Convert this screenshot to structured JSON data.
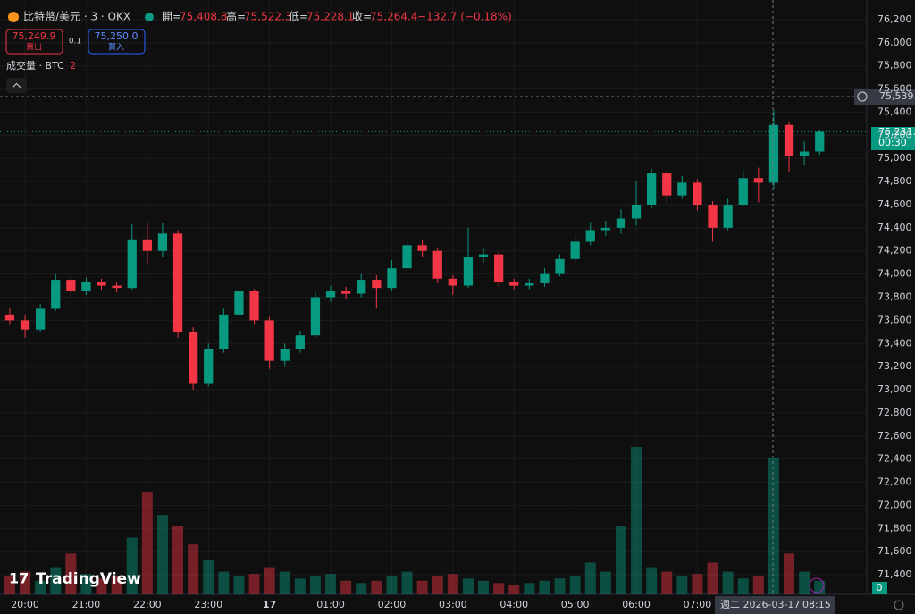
{
  "header": {
    "symbol": "比特幣/美元 · 3 · OKX",
    "open_label": "開=",
    "open": "75,408.8",
    "high_label": "高=",
    "high": "75,522.3",
    "low_label": "低=",
    "low": "75,228.1",
    "close_label": "收=",
    "close": "75,264.4",
    "change": "−132.7 (−0.18%)"
  },
  "trade": {
    "sell_price": "75,249.9",
    "sell": "賣出",
    "spread": "0.1",
    "buy_price": "75,250.0",
    "buy": "買入"
  },
  "volume_legend": {
    "label": "成交量 · BTC",
    "value": "2"
  },
  "logo": "TradingView",
  "crosshair": {
    "price": "75,539.1",
    "date": "週二 2026-03-17",
    "time": "08:15"
  },
  "last_price": {
    "price": "75,231.0",
    "countdown": "00:30"
  },
  "volume_badge": "0",
  "chart_data": {
    "type": "candlestick",
    "up_color": "#089981",
    "down_color": "#f23645",
    "categories": [
      null,
      "20:00",
      null,
      null,
      null,
      "21:00",
      null,
      null,
      null,
      "22:00",
      null,
      null,
      null,
      "23:00",
      null,
      null,
      null,
      "17",
      null,
      null,
      null,
      "01:00",
      null,
      null,
      null,
      "02:00",
      null,
      null,
      null,
      "03:00",
      null,
      null,
      null,
      "04:00",
      null,
      null,
      null,
      "05:00",
      null,
      null,
      null,
      "06:00",
      null,
      null,
      null,
      "07:00",
      null,
      null,
      null,
      null,
      null,
      null,
      null,
      null
    ],
    "open": [
      73650,
      73600,
      73520,
      73700,
      73950,
      73850,
      73930,
      73900,
      73880,
      74300,
      74200,
      74350,
      73500,
      73050,
      73350,
      73650,
      73850,
      73600,
      73250,
      73350,
      73470,
      73800,
      73850,
      73830,
      73950,
      73880,
      74050,
      74250,
      74200,
      73960,
      73900,
      74150,
      74170,
      73930,
      73900,
      73920,
      74000,
      74130,
      74280,
      74380,
      74400,
      74480,
      74600,
      74870,
      74680,
      74790,
      74600,
      74400,
      74600,
      74830,
      74790,
      75290,
      75020,
      75060
    ],
    "high": [
      73700,
      73640,
      73740,
      74000,
      73980,
      73970,
      73960,
      73930,
      74430,
      74450,
      74440,
      74380,
      73540,
      73400,
      73700,
      73900,
      73870,
      73630,
      73400,
      73510,
      73840,
      73900,
      73890,
      74000,
      73990,
      74120,
      74350,
      74300,
      74230,
      73990,
      74400,
      74230,
      74200,
      73960,
      73960,
      74050,
      74170,
      74330,
      74450,
      74460,
      74560,
      74800,
      74910,
      74890,
      74850,
      74820,
      74630,
      74650,
      74900,
      74920,
      75420,
      75320,
      75150,
      75250
    ],
    "low": [
      73560,
      73450,
      73500,
      73680,
      73800,
      73820,
      73860,
      73840,
      73860,
      74080,
      74150,
      73450,
      73000,
      73030,
      73320,
      73620,
      73560,
      73180,
      73200,
      73320,
      73450,
      73760,
      73780,
      73800,
      73700,
      73850,
      74020,
      74150,
      73920,
      73820,
      73880,
      74100,
      73890,
      73860,
      73870,
      73890,
      73980,
      74100,
      74250,
      74330,
      74350,
      74420,
      74570,
      74620,
      74650,
      74550,
      74280,
      74380,
      74580,
      74620,
      74740,
      74880,
      74940,
      75030
    ],
    "close": [
      73600,
      73520,
      73700,
      73950,
      73850,
      73930,
      73900,
      73880,
      74300,
      74200,
      74350,
      73500,
      73050,
      73350,
      73650,
      73850,
      73600,
      73250,
      73350,
      73470,
      73800,
      73850,
      73830,
      73950,
      73880,
      74050,
      74250,
      74200,
      73960,
      73900,
      74150,
      74170,
      73930,
      73900,
      73920,
      74000,
      74130,
      74280,
      74380,
      74400,
      74480,
      74600,
      74870,
      74680,
      74790,
      74600,
      74400,
      74600,
      74830,
      74790,
      75290,
      75020,
      75060,
      75231
    ],
    "volume": [
      8,
      10,
      6,
      12,
      18,
      9,
      7,
      8,
      25,
      45,
      35,
      30,
      22,
      15,
      10,
      8,
      9,
      12,
      10,
      7,
      8,
      9,
      6,
      5,
      6,
      8,
      10,
      6,
      8,
      9,
      7,
      6,
      5,
      4,
      5,
      6,
      7,
      8,
      14,
      10,
      30,
      65,
      12,
      10,
      8,
      9,
      14,
      10,
      7,
      8,
      60,
      18,
      10,
      6
    ],
    "ylim": [
      71230,
      76370
    ],
    "yticks": [
      {
        "value": 71400,
        "label": "71,400"
      },
      {
        "value": 71600,
        "label": "71,600"
      },
      {
        "value": 71800,
        "label": "71,800"
      },
      {
        "value": 72000,
        "label": "72,000"
      },
      {
        "value": 72200,
        "label": "72,200"
      },
      {
        "value": 72400,
        "label": "72,400"
      },
      {
        "value": 72600,
        "label": "72,600"
      },
      {
        "value": 72800,
        "label": "72,800"
      },
      {
        "value": 73000,
        "label": "73,000"
      },
      {
        "value": 73200,
        "label": "73,200"
      },
      {
        "value": 73400,
        "label": "73,400"
      },
      {
        "value": 73600,
        "label": "73,600"
      },
      {
        "value": 73800,
        "label": "73,800"
      },
      {
        "value": 74000,
        "label": "74,000"
      },
      {
        "value": 74200,
        "label": "74,200"
      },
      {
        "value": 74400,
        "label": "74,400"
      },
      {
        "value": 74600,
        "label": "74,600"
      },
      {
        "value": 74800,
        "label": "74,800"
      },
      {
        "value": 75000,
        "label": "75,000"
      },
      {
        "value": 75200,
        "label": "75,200"
      },
      {
        "value": 75400,
        "label": "75,400"
      },
      {
        "value": 75600,
        "label": "75,600"
      },
      {
        "value": 75800,
        "label": "75,800"
      },
      {
        "value": 76000,
        "label": "76,000"
      },
      {
        "value": 76200,
        "label": "76,200"
      }
    ]
  }
}
